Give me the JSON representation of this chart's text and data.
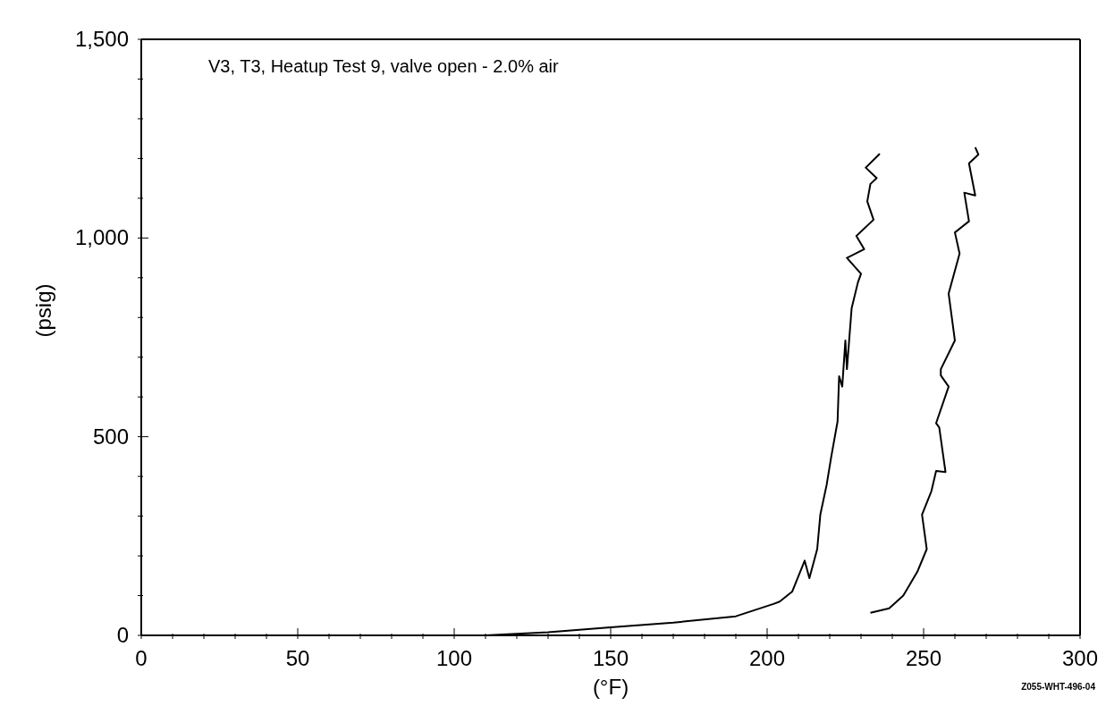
{
  "chart_data": {
    "type": "line",
    "xlabel": "(°F)",
    "ylabel": "(psig)",
    "annotations": [
      "V3, T3, Heatup Test 9, valve open - 2.0% air",
      "Z055-WHT-496-04"
    ],
    "xlim": [
      0,
      300
    ],
    "ylim": [
      0,
      1500
    ],
    "xticks": [
      0,
      {
        "value": 10,
        "label": null
      },
      {
        "value": 20,
        "label": null
      },
      {
        "value": 30,
        "label": null
      },
      {
        "value": 40,
        "label": null
      },
      50,
      {
        "value": 60,
        "label": null
      },
      {
        "value": 70,
        "label": null
      },
      {
        "value": 80,
        "label": null
      },
      {
        "value": 90,
        "label": null
      },
      100,
      {
        "value": 110,
        "label": null
      },
      {
        "value": 120,
        "label": null
      },
      {
        "value": 130,
        "label": null
      },
      {
        "value": 140,
        "label": null
      },
      150,
      {
        "value": 160,
        "label": null
      },
      {
        "value": 170,
        "label": null
      },
      {
        "value": 180,
        "label": null
      },
      {
        "value": 190,
        "label": null
      },
      200,
      {
        "value": 210,
        "label": null
      },
      {
        "value": 220,
        "label": null
      },
      {
        "value": 230,
        "label": null
      },
      {
        "value": 240,
        "label": null
      },
      250,
      {
        "value": 260,
        "label": null
      },
      {
        "value": 270,
        "label": null
      },
      {
        "value": 280,
        "label": null
      },
      {
        "value": 290,
        "label": null
      },
      300
    ],
    "yticks": [
      0,
      {
        "value": 100,
        "label": null
      },
      {
        "value": 200,
        "label": null
      },
      {
        "value": 300,
        "label": null
      },
      {
        "value": 400,
        "label": null
      },
      500,
      {
        "value": 600,
        "label": null
      },
      {
        "value": 700,
        "label": null
      },
      {
        "value": 800,
        "label": null
      },
      {
        "value": 900,
        "label": null
      },
      {
        "value": 1000,
        "label": "1,000"
      },
      {
        "value": 1100,
        "label": null
      },
      {
        "value": 1200,
        "label": null
      },
      {
        "value": 1300,
        "label": null
      },
      {
        "value": 1400,
        "label": null
      },
      {
        "value": 1500,
        "label": "1,500"
      }
    ],
    "marker": "none",
    "line_style": "solid",
    "series": [
      {
        "color": "#000000",
        "x": [
          110,
          130,
          150,
          170,
          190,
          202,
          204,
          208,
          212,
          213.5,
          216,
          217,
          219,
          220.5,
          222.5,
          223,
          224,
          225,
          225.5,
          227,
          229,
          230,
          225.5,
          231,
          228.5,
          234,
          232,
          233,
          235,
          231.5,
          236
        ],
        "values": [
          0,
          8,
          20,
          32,
          48,
          79,
          85,
          110,
          188,
          144,
          217,
          304,
          378,
          450,
          538,
          652,
          626,
          742,
          670,
          823,
          888,
          910,
          950,
          972,
          1005,
          1046,
          1092,
          1136,
          1151,
          1177,
          1212
        ]
      },
      {
        "color": "#000000",
        "x": [
          233,
          239,
          243.5,
          248,
          251,
          249.5,
          252.5,
          254,
          257,
          255,
          254,
          258,
          255.5,
          255.5,
          260,
          258,
          261.5,
          260,
          264.5,
          263,
          266.5,
          264.5,
          267.5,
          266.5
        ],
        "values": [
          57,
          68,
          100,
          160,
          217,
          304,
          363,
          414,
          411,
          523,
          534,
          626,
          654,
          670,
          742,
          860,
          961,
          1014,
          1042,
          1114,
          1107,
          1188,
          1210,
          1228
        ]
      }
    ]
  }
}
